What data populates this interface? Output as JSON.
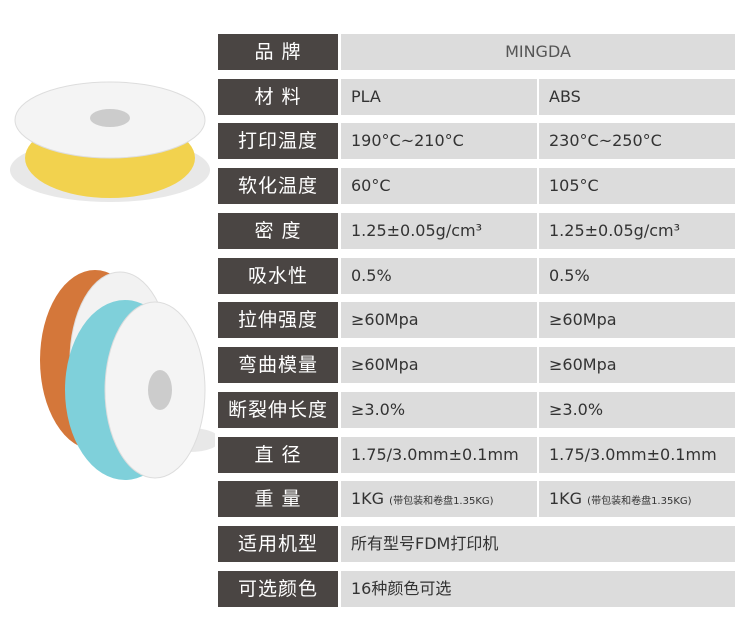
{
  "colors": {
    "label_bg": "#4a4543",
    "value_bg": "#dcdcdc",
    "spool_yellow": "#f2d24e",
    "spool_orange": "#d4773a",
    "spool_blue": "#7fd0da"
  },
  "rows": [
    {
      "label": "品 牌",
      "full": "MINGDA"
    },
    {
      "label": "材 料",
      "pla": "PLA",
      "abs": "ABS"
    },
    {
      "label": "打印温度",
      "pla": "190°C~210°C",
      "abs": "230°C~250°C"
    },
    {
      "label": "软化温度",
      "pla": "60°C",
      "abs": "105°C"
    },
    {
      "label": "密 度",
      "pla": "1.25±0.05g/cm³",
      "abs": "1.25±0.05g/cm³"
    },
    {
      "label": "吸水性",
      "pla": "0.5%",
      "abs": "0.5%"
    },
    {
      "label": "拉伸强度",
      "pla": "≥60Mpa",
      "abs": "≥60Mpa"
    },
    {
      "label": "弯曲模量",
      "pla": "≥60Mpa",
      "abs": "≥60Mpa"
    },
    {
      "label": "断裂伸长度",
      "pla": "≥3.0%",
      "abs": "≥3.0%"
    },
    {
      "label": "直 径",
      "pla": "1.75/3.0mm±0.1mm",
      "abs": "1.75/3.0mm±0.1mm"
    },
    {
      "label": "重 量",
      "pla": "1KG",
      "pla_note": "(带包装和卷盘1.35KG)",
      "abs": "1KG",
      "abs_note": "(带包装和卷盘1.35KG)"
    },
    {
      "label": "适用机型",
      "full": "所有型号FDM打印机"
    },
    {
      "label": "可选颜色",
      "full": "16种颜色可选"
    }
  ]
}
